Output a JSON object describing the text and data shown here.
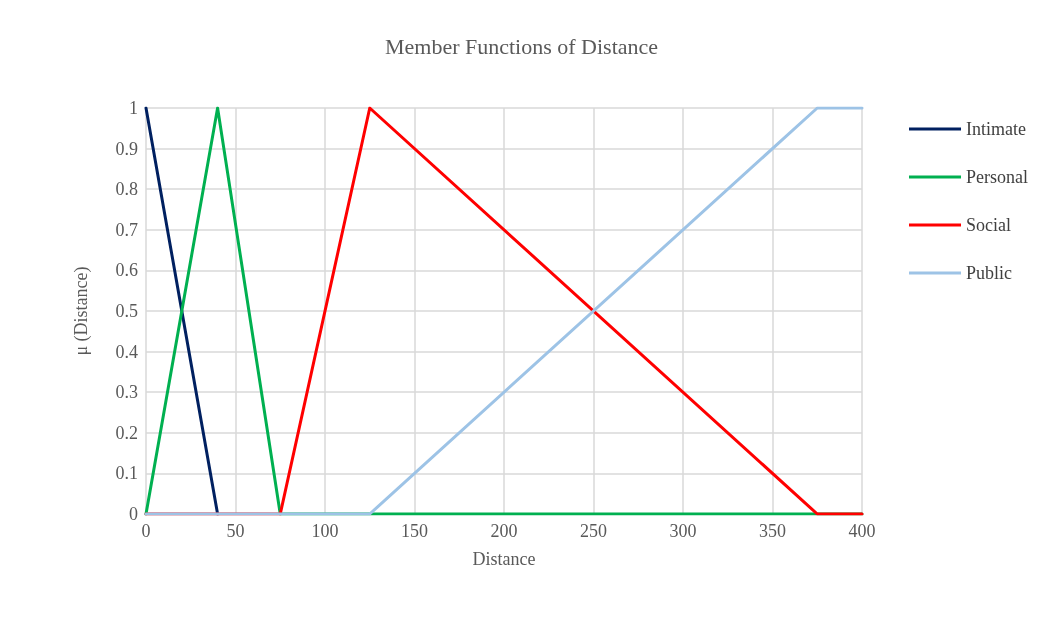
{
  "chart_data": {
    "type": "line",
    "title": "Member Functions of Distance",
    "xlabel": "Distance",
    "ylabel": "μ (Distance)",
    "xlim": [
      0,
      400
    ],
    "xticks": [
      0,
      50,
      100,
      150,
      200,
      250,
      300,
      350,
      400
    ],
    "ylim": [
      0,
      1
    ],
    "yticks": [
      0,
      0.1,
      0.2,
      0.3,
      0.4,
      0.5,
      0.6,
      0.7,
      0.8,
      0.9,
      1
    ],
    "grid": true,
    "legend": "right",
    "marker": "none",
    "line_style": "solid",
    "series": [
      {
        "name": "Intimate",
        "color": "#002060",
        "x": [
          0,
          40
        ],
        "values": [
          1,
          0
        ]
      },
      {
        "name": "Personal",
        "color": "#00b050",
        "x": [
          0,
          40,
          75,
          400
        ],
        "values": [
          0,
          1,
          0,
          0
        ]
      },
      {
        "name": "Social",
        "color": "#ff0000",
        "x": [
          0,
          75,
          125,
          375,
          400
        ],
        "values": [
          0,
          0,
          1,
          0,
          0
        ]
      },
      {
        "name": "Public",
        "color": "#9dc3e6",
        "x": [
          0,
          125,
          375,
          400
        ],
        "values": [
          0,
          0,
          1,
          1
        ]
      }
    ]
  }
}
